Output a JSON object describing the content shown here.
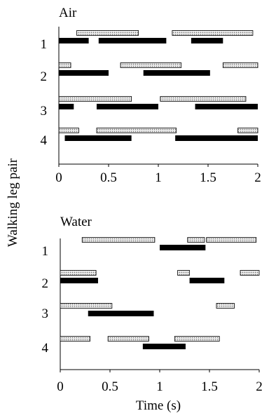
{
  "figure": {
    "ylabel": "Walking leg pair",
    "xlabel": "Time (s)"
  },
  "chart_data": [
    {
      "type": "gantt",
      "title": "Air",
      "xlim": [
        0,
        2
      ],
      "xticks": [
        "0",
        "0.5",
        "1",
        "1.5",
        "2"
      ],
      "rows": [
        {
          "label": "1",
          "hatched": [
            [
              0.18,
              0.8
            ],
            [
              1.14,
              1.95
            ]
          ],
          "solid": [
            [
              0.0,
              0.3
            ],
            [
              0.4,
              1.08
            ],
            [
              1.33,
              1.65
            ]
          ]
        },
        {
          "label": "2",
          "hatched": [
            [
              0.0,
              0.12
            ],
            [
              0.62,
              1.23
            ],
            [
              1.65,
              2.0
            ]
          ],
          "solid": [
            [
              0.0,
              0.5
            ],
            [
              0.85,
              1.52
            ]
          ]
        },
        {
          "label": "3",
          "hatched": [
            [
              0.0,
              0.73
            ],
            [
              1.02,
              1.88
            ]
          ],
          "solid": [
            [
              0.0,
              0.15
            ],
            [
              0.38,
              1.0
            ],
            [
              1.37,
              2.0
            ]
          ]
        },
        {
          "label": "4",
          "hatched": [
            [
              0.0,
              0.2
            ],
            [
              0.38,
              1.18
            ],
            [
              1.8,
              2.0
            ]
          ],
          "solid": [
            [
              0.06,
              0.73
            ],
            [
              1.17,
              2.0
            ]
          ]
        }
      ]
    },
    {
      "type": "gantt",
      "title": "Water",
      "xlim": [
        0,
        2
      ],
      "xticks": [
        "0",
        "0.5",
        "1",
        "1.5",
        "2"
      ],
      "rows": [
        {
          "label": "1",
          "hatched": [
            [
              0.22,
              0.95
            ],
            [
              1.28,
              1.45
            ],
            [
              1.47,
              1.97
            ]
          ],
          "solid": [
            [
              1.0,
              1.46
            ]
          ]
        },
        {
          "label": "2",
          "hatched": [
            [
              0.0,
              0.36
            ],
            [
              1.18,
              1.3
            ],
            [
              1.81,
              2.0
            ]
          ],
          "solid": [
            [
              0.0,
              0.38
            ],
            [
              1.3,
              1.65
            ]
          ]
        },
        {
          "label": "3",
          "hatched": [
            [
              0.0,
              0.52
            ],
            [
              1.57,
              1.75
            ]
          ],
          "solid": [
            [
              0.28,
              0.94
            ]
          ]
        },
        {
          "label": "4",
          "hatched": [
            [
              0.0,
              0.3
            ],
            [
              0.48,
              0.89
            ],
            [
              1.15,
              1.6
            ]
          ],
          "solid": [
            [
              0.83,
              1.26
            ]
          ]
        }
      ]
    }
  ]
}
